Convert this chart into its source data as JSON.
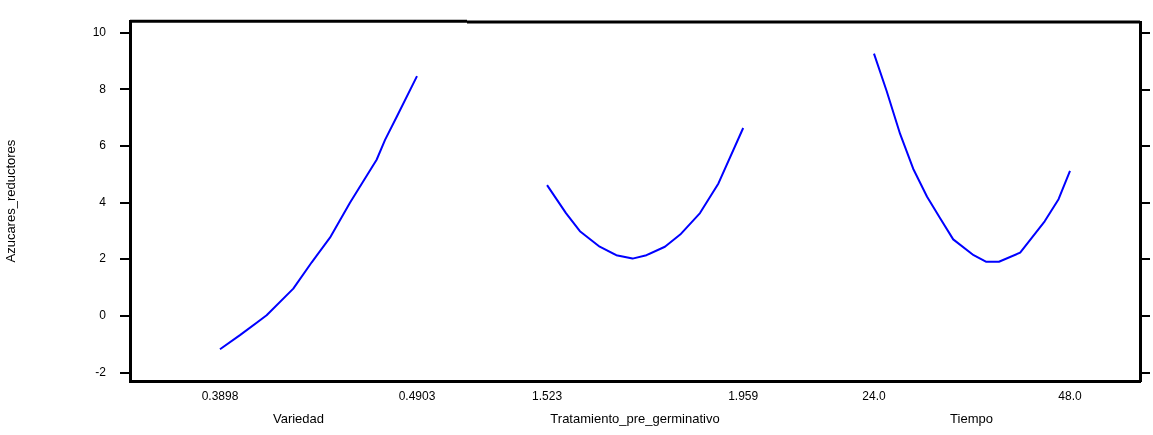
{
  "chart_data": [
    {
      "type": "line",
      "ylabel": "Azucares_reductores",
      "xlabel": "Variedad",
      "xlim": [
        0.3439,
        0.5158
      ],
      "xticks": [
        0.3898,
        0.4903
      ],
      "ylim": [
        -2.3,
        10.4
      ],
      "yticks": [
        -2,
        0,
        2,
        4,
        6,
        8,
        10
      ],
      "grid": false,
      "legend": false,
      "marker": "none",
      "series": [
        {
          "color": "#0000ff",
          "x": [
            0.3898,
            0.4,
            0.4136,
            0.4272,
            0.4366,
            0.4459,
            0.4561,
            0.4697,
            0.474,
            0.4799,
            0.4903
          ],
          "values": [
            -1.18,
            -0.68,
            0.02,
            0.96,
            1.89,
            2.76,
            3.99,
            5.51,
            6.21,
            7.02,
            8.46
          ]
        }
      ]
    },
    {
      "type": "line",
      "xlabel": "Tratamiento_pre_germinativo",
      "xlim": [
        1.345,
        2.092
      ],
      "xticks": [
        1.523,
        1.959
      ],
      "ylim": [
        -2.3,
        10.4
      ],
      "yticks": [
        -2,
        0,
        2,
        4,
        6,
        8,
        10
      ],
      "tick_labels": "x",
      "grid": false,
      "legend": false,
      "marker": "none",
      "series": [
        {
          "color": "#0000ff",
          "x": [
            1.523,
            1.565,
            1.596,
            1.64,
            1.677,
            1.713,
            1.744,
            1.785,
            1.819,
            1.863,
            1.904,
            1.959
          ],
          "values": [
            4.63,
            3.64,
            3.0,
            2.45,
            2.15,
            2.03,
            2.15,
            2.45,
            2.88,
            3.64,
            4.69,
            6.65
          ]
        }
      ]
    },
    {
      "type": "line",
      "xlabel": "Tiempo",
      "xlim": [
        15.31,
        56.57
      ],
      "xticks": [
        {
          "value": 24,
          "label": "24.0"
        },
        {
          "value": 48,
          "label": "48.0"
        }
      ],
      "ylim": [
        -2.3,
        10.4
      ],
      "yticks": [
        -2,
        0,
        2,
        4,
        6,
        8,
        10
      ],
      "tick_labels": "x",
      "grid": false,
      "legend": false,
      "marker": "none",
      "series": [
        {
          "color": "#0000ff",
          "x": [
            24,
            25.55,
            27.2,
            28.8,
            30.5,
            32.1,
            33.7,
            36.2,
            37.7,
            39.3,
            41.9,
            44.9,
            46.6,
            48
          ],
          "values": [
            9.28,
            7.96,
            6.44,
            5.21,
            4.22,
            3.46,
            2.71,
            2.15,
            1.92,
            1.92,
            2.24,
            3.35,
            4.13,
            5.13
          ]
        }
      ]
    }
  ]
}
